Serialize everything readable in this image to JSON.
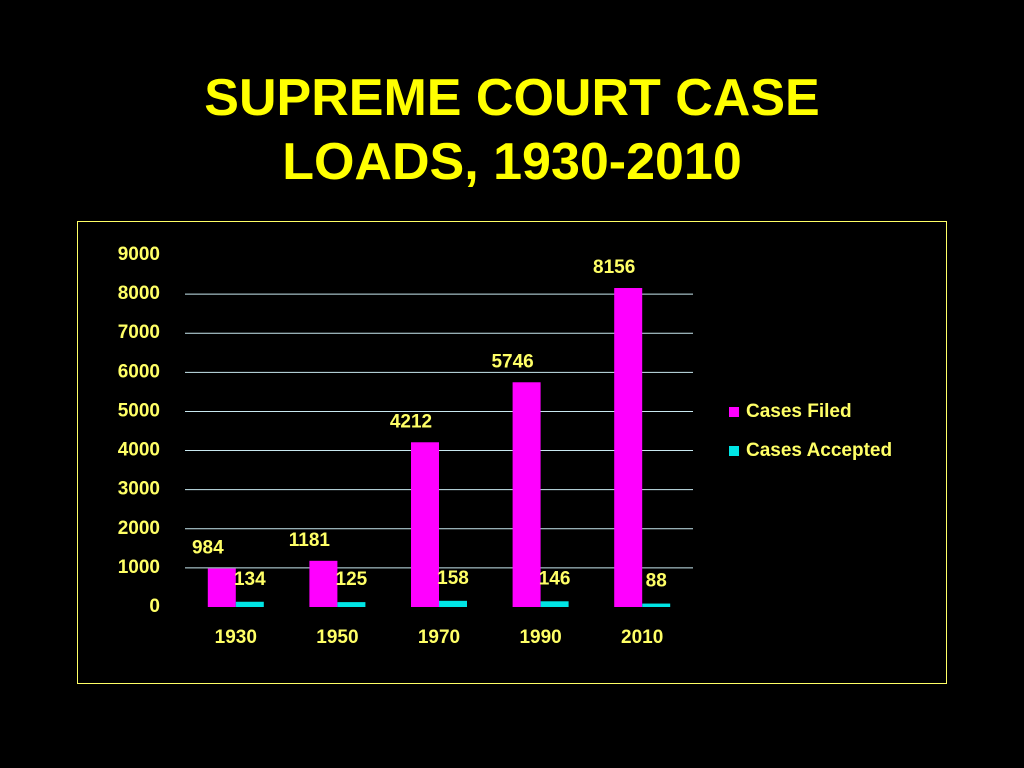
{
  "chart_data": {
    "type": "bar",
    "title": "SUPREME COURT CASE LOADS, 1930-2010",
    "categories": [
      "1930",
      "1950",
      "1970",
      "1990",
      "2010"
    ],
    "series": [
      {
        "name": "Cases Filed",
        "color": "#ff00ff",
        "values": [
          984,
          1181,
          4212,
          5746,
          8156
        ]
      },
      {
        "name": "Cases Accepted",
        "color": "#00e5e5",
        "values": [
          134,
          125,
          158,
          146,
          88
        ]
      }
    ],
    "ylim": [
      0,
      9000
    ],
    "yticks": [
      0,
      1000,
      2000,
      3000,
      4000,
      5000,
      6000,
      7000,
      8000,
      9000
    ],
    "grid": true,
    "legend": "right"
  }
}
